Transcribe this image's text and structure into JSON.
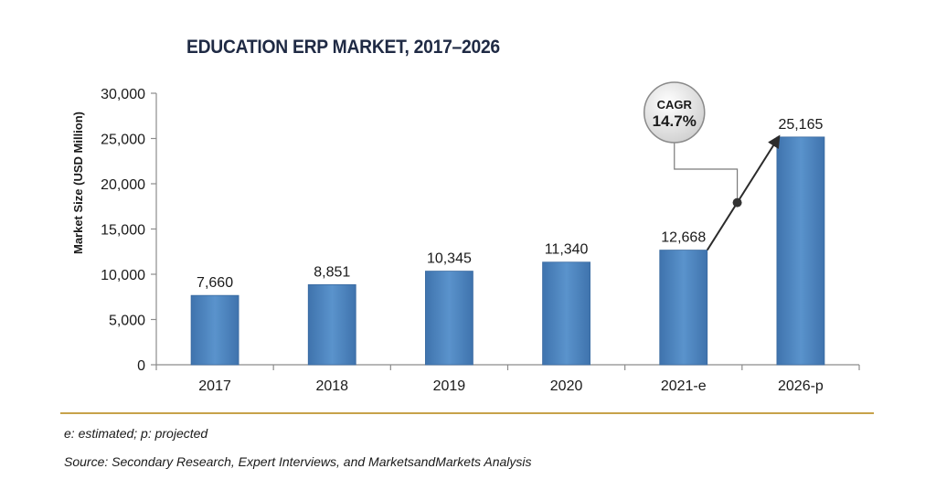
{
  "chart_data": {
    "type": "bar",
    "title": "EDUCATION ERP MARKET, 2017–2026",
    "ylabel": "Market Size (USD Million)",
    "xlabel": "",
    "ylim": [
      0,
      30000
    ],
    "yticks": [
      0,
      5000,
      10000,
      15000,
      20000,
      25000,
      30000
    ],
    "ytick_labels": [
      "0",
      "5,000",
      "10,000",
      "15,000",
      "20,000",
      "25,000",
      "30,000"
    ],
    "categories": [
      "2017",
      "2018",
      "2019",
      "2020",
      "2021-e",
      "2026-p"
    ],
    "values": [
      7660,
      8851,
      10345,
      11340,
      12668,
      25165
    ],
    "value_labels": [
      "7,660",
      "8,851",
      "10,345",
      "11,340",
      "12,668",
      "25,165"
    ],
    "grid": false,
    "bar_color": "#4f86c0",
    "annotation": {
      "line1": "CAGR",
      "line2": "14.7%"
    }
  },
  "footnote": "e: estimated; p: projected",
  "source": "Source: Secondary Research, Expert Interviews, and MarketsandMarkets Analysis"
}
